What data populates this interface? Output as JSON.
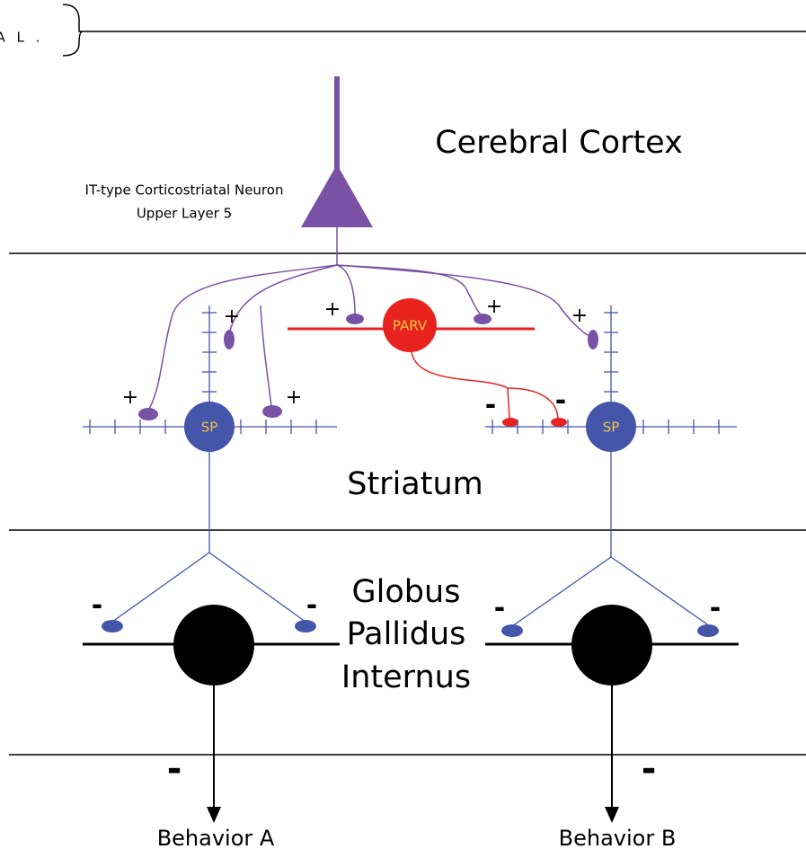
{
  "header": {
    "text": "A L ."
  },
  "regions": {
    "cortex": "Cerebral Cortex",
    "striatum": "Striatum",
    "gpi": [
      "Globus",
      "Pallidus",
      "Internus"
    ]
  },
  "neuron_label": [
    "IT-type Corticostriatal Neuron",
    "Upper Layer 5"
  ],
  "cells": {
    "sp_left": "SP",
    "parv": "PARV",
    "sp_right": "SP"
  },
  "signs": [
    "+",
    "+",
    "+",
    "+",
    "+",
    "+",
    "-",
    "-",
    "-",
    "-",
    "-",
    "-",
    "-",
    "-"
  ],
  "outputs": [
    "Behavior A",
    "Behavior B"
  ]
}
